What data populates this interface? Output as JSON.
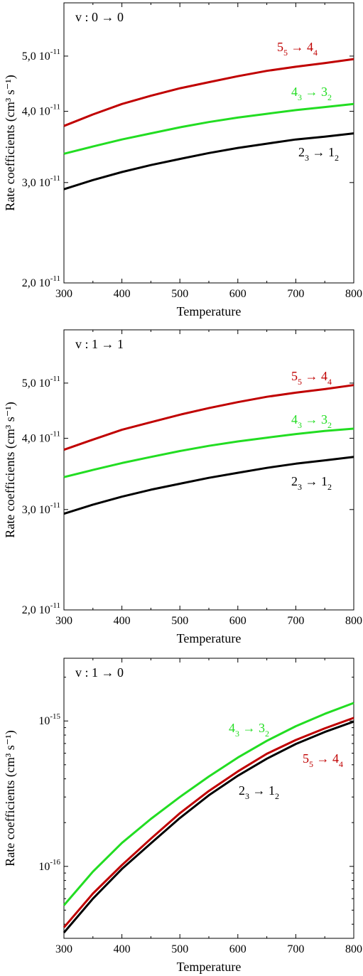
{
  "chart_data": [
    {
      "type": "line",
      "title": "v : 0 → 0",
      "xlabel": "Temperature",
      "ylabel": "Rate coefficients (cm³ s⁻¹)",
      "xlim": [
        300,
        800
      ],
      "ylim": [
        2e-11,
        6.2e-11
      ],
      "yscale": "log",
      "grid": false,
      "x_ticks": [
        300,
        400,
        500,
        600,
        700,
        800
      ],
      "y_ticks": [
        {
          "value": 2e-11,
          "mantissa": "2,0 10",
          "exp": "-11"
        },
        {
          "value": 3e-11,
          "mantissa": "3,0 10",
          "exp": "-11"
        },
        {
          "value": 4e-11,
          "mantissa": "4,0 10",
          "exp": "-11"
        },
        {
          "value": 5e-11,
          "mantissa": "5,0 10",
          "exp": "-11"
        }
      ],
      "x": [
        300,
        350,
        400,
        450,
        500,
        550,
        600,
        650,
        700,
        750,
        800
      ],
      "series": [
        {
          "name": "5₅ → 4₄",
          "color": "#c00000",
          "label": {
            "a": "5",
            "as": "5",
            "b": "4",
            "bs": "4"
          },
          "values": [
            3.77e-11,
            3.95e-11,
            4.12e-11,
            4.26e-11,
            4.39e-11,
            4.5e-11,
            4.61e-11,
            4.71e-11,
            4.79e-11,
            4.86e-11,
            4.94e-11
          ]
        },
        {
          "name": "4₃ → 3₂",
          "color": "#22dd22",
          "label": {
            "a": "4",
            "as": "3",
            "b": "3",
            "bs": "2"
          },
          "values": [
            3.37e-11,
            3.47e-11,
            3.57e-11,
            3.66e-11,
            3.75e-11,
            3.83e-11,
            3.9e-11,
            3.96e-11,
            4.02e-11,
            4.07e-11,
            4.12e-11
          ]
        },
        {
          "name": "2₃ → 1₂",
          "color": "#000000",
          "label": {
            "a": "2",
            "as": "3",
            "b": "1",
            "bs": "2"
          },
          "values": [
            2.92e-11,
            3.03e-11,
            3.13e-11,
            3.22e-11,
            3.3e-11,
            3.38e-11,
            3.45e-11,
            3.51e-11,
            3.57e-11,
            3.61e-11,
            3.66e-11
          ]
        }
      ]
    },
    {
      "type": "line",
      "title": "v : 1 → 1",
      "xlabel": "Temperature",
      "ylabel": "Rate coefficients (cm³ s⁻¹)",
      "xlim": [
        300,
        800
      ],
      "ylim": [
        2e-11,
        6.2e-11
      ],
      "yscale": "log",
      "grid": false,
      "x_ticks": [
        300,
        400,
        500,
        600,
        700,
        800
      ],
      "y_ticks": [
        {
          "value": 2e-11,
          "mantissa": "2,0 10",
          "exp": "-11"
        },
        {
          "value": 3e-11,
          "mantissa": "3,0 10",
          "exp": "-11"
        },
        {
          "value": 4e-11,
          "mantissa": "4,0 10",
          "exp": "-11"
        },
        {
          "value": 5e-11,
          "mantissa": "5,0 10",
          "exp": "-11"
        }
      ],
      "x": [
        300,
        350,
        400,
        450,
        500,
        550,
        600,
        650,
        700,
        750,
        800
      ],
      "series": [
        {
          "name": "5₅ → 4₄",
          "color": "#c00000",
          "label": {
            "a": "5",
            "as": "5",
            "b": "4",
            "bs": "4"
          },
          "values": [
            3.82e-11,
            3.98e-11,
            4.14e-11,
            4.27e-11,
            4.4e-11,
            4.52e-11,
            4.63e-11,
            4.73e-11,
            4.81e-11,
            4.88e-11,
            4.96e-11
          ]
        },
        {
          "name": "4₃ → 3₂",
          "color": "#22dd22",
          "label": {
            "a": "4",
            "as": "3",
            "b": "3",
            "bs": "2"
          },
          "values": [
            3.42e-11,
            3.52e-11,
            3.62e-11,
            3.71e-11,
            3.8e-11,
            3.88e-11,
            3.95e-11,
            4.01e-11,
            4.07e-11,
            4.12e-11,
            4.16e-11
          ]
        },
        {
          "name": "2₃ → 1₂",
          "color": "#000000",
          "label": {
            "a": "2",
            "as": "3",
            "b": "1",
            "bs": "2"
          },
          "values": [
            2.95e-11,
            3.06e-11,
            3.16e-11,
            3.25e-11,
            3.33e-11,
            3.41e-11,
            3.48e-11,
            3.55e-11,
            3.61e-11,
            3.66e-11,
            3.71e-11
          ]
        }
      ]
    },
    {
      "type": "line",
      "title": "v : 1 → 0",
      "xlabel": "Temperature",
      "ylabel": "Rate coefficients (cm³ s⁻¹)",
      "xlim": [
        300,
        800
      ],
      "ylim": [
        3.2e-17,
        2.7e-15
      ],
      "yscale": "log",
      "grid": false,
      "x_ticks": [
        300,
        400,
        500,
        600,
        700,
        800
      ],
      "y_ticks": [
        {
          "value": 1e-16,
          "mantissa": "10",
          "exp": "-16"
        },
        {
          "value": 1e-15,
          "mantissa": "10",
          "exp": "-15"
        }
      ],
      "y_minor_ticks": [
        4e-17,
        5e-17,
        6e-17,
        7e-17,
        8e-17,
        9e-17,
        2e-16,
        3e-16,
        4e-16,
        5e-16,
        6e-16,
        7e-16,
        8e-16,
        9e-16,
        2e-15
      ],
      "x": [
        300,
        350,
        400,
        450,
        500,
        550,
        600,
        650,
        700,
        750,
        800
      ],
      "series": [
        {
          "name": "4₃ → 3₂",
          "color": "#22dd22",
          "label": {
            "a": "4",
            "as": "3",
            "b": "3",
            "bs": "2"
          },
          "values": [
            5.4e-17,
            9.2e-17,
            1.45e-16,
            2.12e-16,
            3e-16,
            4.15e-16,
            5.6e-16,
            7.3e-16,
            9.2e-16,
            1.12e-15,
            1.33e-15
          ]
        },
        {
          "name": "5₅ → 4₄",
          "color": "#c00000",
          "label": {
            "a": "5",
            "as": "5",
            "b": "4",
            "bs": "4"
          },
          "values": [
            3.8e-17,
            6.5e-17,
            1.02e-16,
            1.55e-16,
            2.32e-16,
            3.3e-16,
            4.5e-16,
            5.95e-16,
            7.4e-16,
            8.9e-16,
            1.05e-15
          ]
        },
        {
          "name": "2₃ → 1₂",
          "color": "#000000",
          "label": {
            "a": "2",
            "as": "3",
            "b": "1",
            "bs": "2"
          },
          "values": [
            3.5e-17,
            6e-17,
            9.6e-17,
            1.44e-16,
            2.15e-16,
            3.08e-16,
            4.2e-16,
            5.5e-16,
            6.95e-16,
            8.4e-16,
            9.9e-16
          ]
        }
      ]
    }
  ]
}
